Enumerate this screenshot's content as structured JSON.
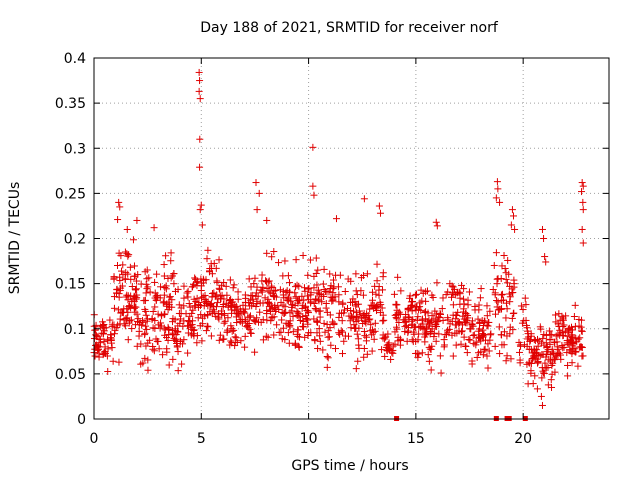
{
  "chart_data": {
    "type": "scatter",
    "title": "Day 188 of 2021, SRMTID for receiver norf",
    "xlabel": "GPS time / hours",
    "ylabel": "SRMTID / TECUs",
    "xlim": [
      0,
      24
    ],
    "ylim": [
      0,
      0.4
    ],
    "xticks": [
      0,
      5,
      10,
      15,
      20
    ],
    "xtick_labels": [
      "0",
      "5",
      "10",
      "15",
      "20"
    ],
    "yticks": [
      0,
      0.05,
      0.1,
      0.15,
      0.2,
      0.25,
      0.3,
      0.35,
      0.4
    ],
    "ytick_labels": [
      "0",
      "0.05",
      "0.1",
      "0.15",
      "0.2",
      "0.25",
      "0.3",
      "0.35",
      "0.4"
    ],
    "grid": true,
    "marker": "plus",
    "color": "#e00000",
    "series": [
      {
        "name": "SRMTID",
        "clusters": [
          {
            "x_start": 0.0,
            "x_end": 0.9,
            "y_min": 0.045,
            "y_max": 0.13,
            "count": 60
          },
          {
            "x_start": 0.9,
            "x_end": 2.0,
            "y_min": 0.05,
            "y_max": 0.21,
            "count": 90
          },
          {
            "x_start": 2.0,
            "x_end": 3.8,
            "y_min": 0.04,
            "y_max": 0.2,
            "count": 130
          },
          {
            "x_start": 3.8,
            "x_end": 4.7,
            "y_min": 0.045,
            "y_max": 0.17,
            "count": 60
          },
          {
            "x_start": 4.7,
            "x_end": 6.0,
            "y_min": 0.07,
            "y_max": 0.2,
            "count": 90
          },
          {
            "x_start": 6.0,
            "x_end": 7.5,
            "y_min": 0.06,
            "y_max": 0.17,
            "count": 100
          },
          {
            "x_start": 7.5,
            "x_end": 9.5,
            "y_min": 0.06,
            "y_max": 0.2,
            "count": 130
          },
          {
            "x_start": 9.5,
            "x_end": 11.5,
            "y_min": 0.05,
            "y_max": 0.2,
            "count": 130
          },
          {
            "x_start": 11.5,
            "x_end": 13.5,
            "y_min": 0.05,
            "y_max": 0.19,
            "count": 120
          },
          {
            "x_start": 13.5,
            "x_end": 14.0,
            "y_min": 0.05,
            "y_max": 0.12,
            "count": 20
          },
          {
            "x_start": 14.0,
            "x_end": 15.5,
            "y_min": 0.06,
            "y_max": 0.16,
            "count": 100
          },
          {
            "x_start": 15.5,
            "x_end": 17.5,
            "y_min": 0.04,
            "y_max": 0.18,
            "count": 120
          },
          {
            "x_start": 17.5,
            "x_end": 18.5,
            "y_min": 0.04,
            "y_max": 0.15,
            "count": 60
          },
          {
            "x_start": 18.6,
            "x_end": 19.6,
            "y_min": 0.05,
            "y_max": 0.2,
            "count": 60
          },
          {
            "x_start": 19.8,
            "x_end": 20.2,
            "y_min": 0.05,
            "y_max": 0.15,
            "count": 20
          },
          {
            "x_start": 20.2,
            "x_end": 21.5,
            "y_min": 0.02,
            "y_max": 0.12,
            "count": 90
          },
          {
            "x_start": 21.5,
            "x_end": 22.8,
            "y_min": 0.04,
            "y_max": 0.14,
            "count": 90
          }
        ],
        "highlights": [
          {
            "x": 4.9,
            "y": 0.384
          },
          {
            "x": 4.92,
            "y": 0.375
          },
          {
            "x": 4.9,
            "y": 0.363
          },
          {
            "x": 4.95,
            "y": 0.355
          },
          {
            "x": 4.93,
            "y": 0.31
          },
          {
            "x": 4.92,
            "y": 0.279
          },
          {
            "x": 5.0,
            "y": 0.237
          },
          {
            "x": 4.95,
            "y": 0.232
          },
          {
            "x": 5.05,
            "y": 0.215
          },
          {
            "x": 10.2,
            "y": 0.301
          },
          {
            "x": 10.2,
            "y": 0.258
          },
          {
            "x": 10.25,
            "y": 0.248
          },
          {
            "x": 7.55,
            "y": 0.262
          },
          {
            "x": 7.7,
            "y": 0.25
          },
          {
            "x": 7.6,
            "y": 0.232
          },
          {
            "x": 8.05,
            "y": 0.22
          },
          {
            "x": 1.15,
            "y": 0.24
          },
          {
            "x": 1.2,
            "y": 0.235
          },
          {
            "x": 1.1,
            "y": 0.221
          },
          {
            "x": 1.55,
            "y": 0.21
          },
          {
            "x": 2.0,
            "y": 0.22
          },
          {
            "x": 2.8,
            "y": 0.212
          },
          {
            "x": 12.6,
            "y": 0.244
          },
          {
            "x": 13.3,
            "y": 0.236
          },
          {
            "x": 13.35,
            "y": 0.228
          },
          {
            "x": 11.3,
            "y": 0.222
          },
          {
            "x": 15.95,
            "y": 0.218
          },
          {
            "x": 16.0,
            "y": 0.214
          },
          {
            "x": 18.8,
            "y": 0.263
          },
          {
            "x": 18.82,
            "y": 0.255
          },
          {
            "x": 18.75,
            "y": 0.245
          },
          {
            "x": 18.9,
            "y": 0.24
          },
          {
            "x": 19.5,
            "y": 0.232
          },
          {
            "x": 19.55,
            "y": 0.225
          },
          {
            "x": 19.45,
            "y": 0.215
          },
          {
            "x": 19.6,
            "y": 0.21
          },
          {
            "x": 20.9,
            "y": 0.21
          },
          {
            "x": 20.95,
            "y": 0.2
          },
          {
            "x": 21.0,
            "y": 0.18
          },
          {
            "x": 21.05,
            "y": 0.174
          },
          {
            "x": 22.75,
            "y": 0.262
          },
          {
            "x": 22.8,
            "y": 0.258
          },
          {
            "x": 22.72,
            "y": 0.252
          },
          {
            "x": 22.78,
            "y": 0.24
          },
          {
            "x": 22.8,
            "y": 0.232
          },
          {
            "x": 22.75,
            "y": 0.21
          },
          {
            "x": 22.8,
            "y": 0.195
          },
          {
            "x": 20.9,
            "y": 0.015
          },
          {
            "x": 20.85,
            "y": 0.025
          },
          {
            "x": 14.15,
            "y": 0.157
          },
          {
            "x": 14.3,
            "y": 0.142
          }
        ],
        "zero_values_x": [
          14.1,
          18.75,
          19.25,
          19.35,
          20.1
        ]
      }
    ]
  }
}
